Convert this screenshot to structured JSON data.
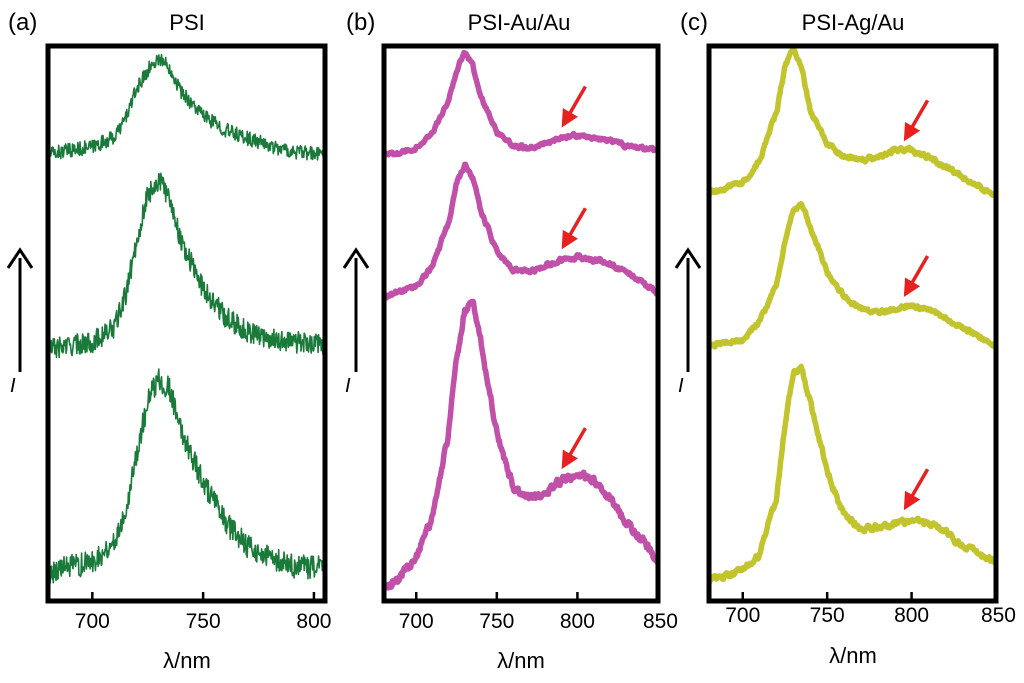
{
  "figure": {
    "y_axis_label": "I",
    "x_axis_title": "λ/nm",
    "arrow_color": "#e8201f",
    "axis_arrow_color": "#000000"
  },
  "chart_data": [
    {
      "type": "line",
      "panel_label": "(a)",
      "title": "PSI",
      "xlabel": "λ/nm",
      "ylabel": "I",
      "xlim": [
        680,
        805
      ],
      "xticks": [
        700,
        750,
        800
      ],
      "color": "#1a7a3a",
      "noise": 0.06,
      "series": [
        {
          "name": "top",
          "x": [
            680,
            700,
            710,
            715,
            720,
            725,
            730,
            735,
            740,
            750,
            760,
            770,
            780,
            790,
            800,
            805
          ],
          "y": [
            0.2,
            0.26,
            0.34,
            0.5,
            0.74,
            0.9,
            1.0,
            0.92,
            0.72,
            0.52,
            0.4,
            0.33,
            0.27,
            0.22,
            0.2,
            0.2
          ]
        },
        {
          "name": "middle",
          "x": [
            680,
            700,
            710,
            715,
            720,
            725,
            730,
            735,
            740,
            750,
            760,
            770,
            780,
            790,
            800,
            805
          ],
          "y": [
            0.06,
            0.1,
            0.18,
            0.36,
            0.66,
            0.92,
            1.0,
            0.9,
            0.66,
            0.4,
            0.24,
            0.16,
            0.12,
            0.1,
            0.09,
            0.08
          ]
        },
        {
          "name": "bottom",
          "x": [
            680,
            700,
            710,
            715,
            720,
            725,
            730,
            735,
            740,
            750,
            760,
            770,
            780,
            790,
            800,
            805
          ],
          "y": [
            0.03,
            0.08,
            0.18,
            0.34,
            0.62,
            0.88,
            1.0,
            0.94,
            0.74,
            0.48,
            0.28,
            0.16,
            0.1,
            0.06,
            0.05,
            0.05
          ]
        }
      ]
    },
    {
      "type": "line",
      "panel_label": "(b)",
      "title": "PSI-Au/Au",
      "xlabel": "λ/nm",
      "ylabel": "I",
      "xlim": [
        680,
        850
      ],
      "xticks": [
        700,
        750,
        800,
        850
      ],
      "color": "#c050a8",
      "noise": 0.025,
      "annotation_x": 795,
      "series": [
        {
          "name": "top",
          "x": [
            680,
            700,
            710,
            720,
            725,
            730,
            735,
            740,
            750,
            760,
            770,
            780,
            790,
            800,
            810,
            820,
            830,
            840,
            850
          ],
          "y": [
            0.2,
            0.26,
            0.38,
            0.62,
            0.86,
            1.0,
            0.9,
            0.66,
            0.38,
            0.28,
            0.26,
            0.3,
            0.34,
            0.36,
            0.34,
            0.32,
            0.28,
            0.26,
            0.24
          ]
        },
        {
          "name": "middle",
          "x": [
            680,
            700,
            710,
            720,
            725,
            730,
            735,
            740,
            750,
            760,
            770,
            780,
            790,
            800,
            810,
            820,
            830,
            840,
            850
          ],
          "y": [
            0.14,
            0.2,
            0.34,
            0.62,
            0.88,
            1.0,
            0.92,
            0.7,
            0.44,
            0.32,
            0.3,
            0.34,
            0.38,
            0.4,
            0.38,
            0.36,
            0.3,
            0.24,
            0.16
          ]
        },
        {
          "name": "bottom",
          "x": [
            680,
            690,
            700,
            710,
            720,
            725,
            730,
            735,
            740,
            750,
            760,
            770,
            780,
            790,
            800,
            810,
            820,
            830,
            840,
            850
          ],
          "y": [
            0.02,
            0.05,
            0.12,
            0.26,
            0.54,
            0.8,
            0.96,
            1.0,
            0.86,
            0.54,
            0.36,
            0.32,
            0.34,
            0.38,
            0.4,
            0.38,
            0.32,
            0.24,
            0.18,
            0.1
          ]
        }
      ]
    },
    {
      "type": "line",
      "panel_label": "(c)",
      "title": "PSI-Ag/Au",
      "xlabel": "λ/nm",
      "ylabel": "I",
      "xlim": [
        680,
        850
      ],
      "xticks": [
        700,
        750,
        800,
        850
      ],
      "color": "#c2c42e",
      "noise": 0.025,
      "annotation_x": 800,
      "series": [
        {
          "name": "top",
          "x": [
            680,
            700,
            710,
            720,
            725,
            730,
            735,
            740,
            750,
            760,
            770,
            780,
            790,
            800,
            810,
            820,
            830,
            840,
            850
          ],
          "y": [
            0.12,
            0.18,
            0.32,
            0.62,
            0.9,
            1.0,
            0.88,
            0.62,
            0.42,
            0.34,
            0.32,
            0.34,
            0.38,
            0.38,
            0.34,
            0.28,
            0.22,
            0.16,
            0.1
          ]
        },
        {
          "name": "middle",
          "x": [
            680,
            700,
            710,
            720,
            725,
            730,
            735,
            740,
            750,
            760,
            770,
            780,
            790,
            800,
            810,
            820,
            830,
            840,
            850
          ],
          "y": [
            0.08,
            0.12,
            0.24,
            0.48,
            0.76,
            0.96,
            1.0,
            0.86,
            0.56,
            0.4,
            0.32,
            0.3,
            0.32,
            0.34,
            0.32,
            0.26,
            0.2,
            0.14,
            0.08
          ]
        },
        {
          "name": "bottom",
          "x": [
            680,
            700,
            710,
            720,
            725,
            730,
            735,
            740,
            750,
            760,
            770,
            780,
            790,
            800,
            810,
            820,
            830,
            840,
            850
          ],
          "y": [
            0.02,
            0.06,
            0.14,
            0.4,
            0.74,
            0.98,
            1.0,
            0.84,
            0.52,
            0.32,
            0.26,
            0.26,
            0.28,
            0.3,
            0.28,
            0.24,
            0.18,
            0.14,
            0.1
          ]
        }
      ]
    }
  ]
}
